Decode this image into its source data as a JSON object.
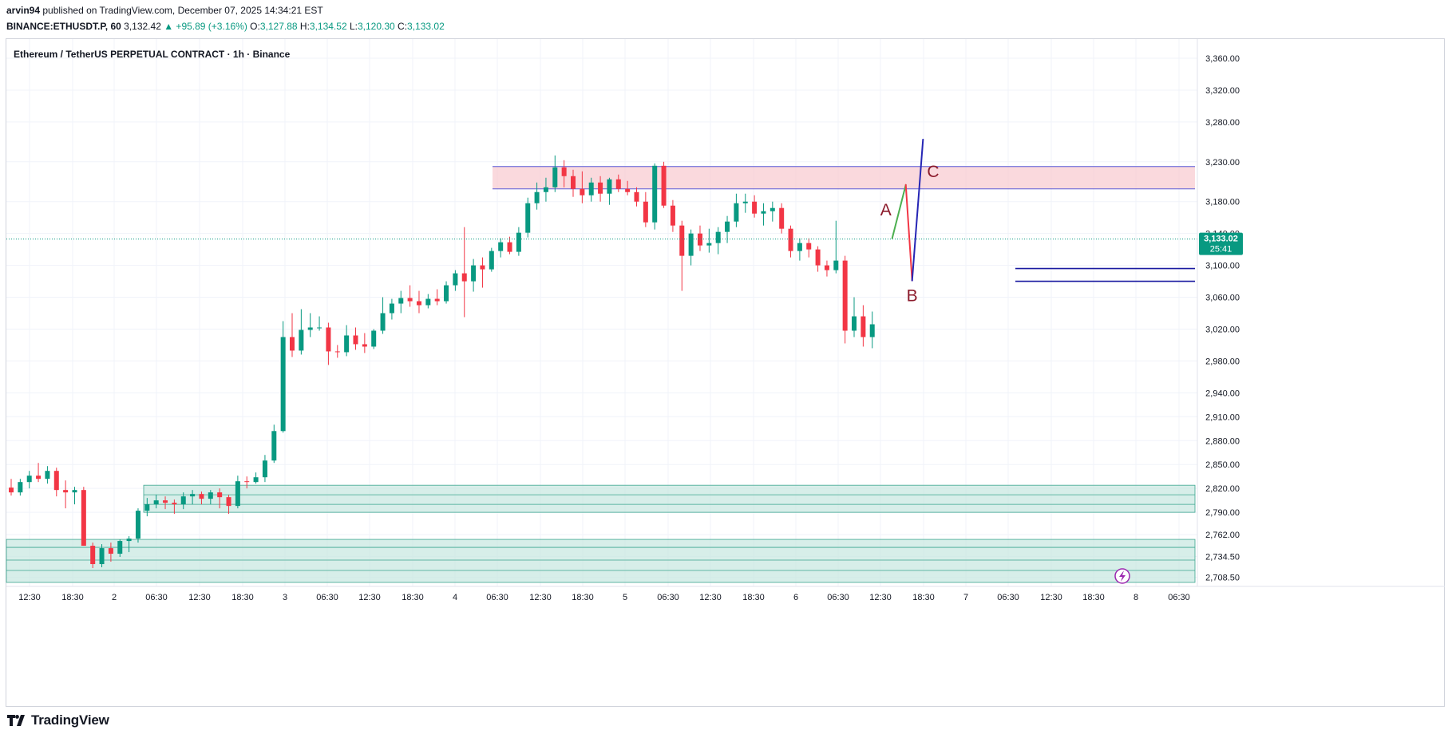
{
  "header": {
    "author": "arvin94",
    "published_text": "published on TradingView.com, December 07, 2025 14:34:21 EST",
    "symbol_interval": "BINANCE:ETHUSDT.P, 60",
    "last": "3,132.42",
    "change": "▲ +95.89 (+3.16%)",
    "o_label": "O:",
    "o_value": "3,127.88",
    "h_label": "H:",
    "h_value": "3,134.52",
    "l_label": "L:",
    "l_value": "3,120.30",
    "c_label": "C:",
    "c_value": "3,133.02"
  },
  "chart_title": "Ethereum / TetherUS PERPETUAL CONTRACT · 1h · Binance",
  "brand": {
    "name": "TradingView",
    "logo_icon": "tradingview-logo-icon"
  },
  "colors": {
    "up": "#089981",
    "down": "#f23645",
    "zone_supply": "#f7c5cb",
    "zone_demand": "#c6e7df",
    "navy": "#1a1aa0",
    "wave_label": "#8b1a2b",
    "price_tag": "#089981",
    "grid": "#f0f3fa"
  },
  "chart_data": {
    "type": "candlestick",
    "title": "Ethereum / TetherUS PERPETUAL CONTRACT · 1h · Binance",
    "ylim": [
      2700,
      3385
    ],
    "x_tick_labels": [
      "12:30",
      "18:30",
      "2",
      "06:30",
      "12:30",
      "18:30",
      "3",
      "06:30",
      "12:30",
      "18:30",
      "4",
      "06:30",
      "12:30",
      "18:30",
      "5",
      "06:30",
      "12:30",
      "18:30",
      "6",
      "06:30",
      "12:30",
      "18:30",
      "7",
      "06:30",
      "12:30",
      "18:30",
      "8",
      "06:30"
    ],
    "y_ticks": [
      3360,
      3320,
      3280,
      3230,
      3180,
      3140,
      3100,
      3060,
      3020,
      2980,
      2940,
      2910,
      2880,
      2850,
      2820,
      2790,
      2762,
      2734.5,
      2708.5
    ],
    "y_tick_labels": [
      "3,360.00",
      "3,320.00",
      "3,280.00",
      "3,230.00",
      "3,180.00",
      "3,140.00",
      "3,100.00",
      "3,060.00",
      "3,020.00",
      "2,980.00",
      "2,940.00",
      "2,910.00",
      "2,880.00",
      "2,850.00",
      "2,820.00",
      "2,790.00",
      "2,762.00",
      "2,734.50",
      "2,708.50"
    ],
    "current_price": {
      "value": 3133.02,
      "label": "3,133.02",
      "countdown": "25:41"
    },
    "zones": [
      {
        "name": "supply-zone",
        "type": "supply",
        "price_low": 3196,
        "price_high": 3224
      },
      {
        "name": "demand-zone-upper",
        "type": "demand",
        "price_low": 2790,
        "price_high": 2824,
        "inner_lines": [
          2812,
          2800
        ]
      },
      {
        "name": "demand-zone-lower",
        "type": "demand",
        "price_low": 2702,
        "price_high": 2756,
        "inner_lines": [
          2746,
          2730,
          2717
        ]
      }
    ],
    "levels": [
      3096,
      3080
    ],
    "projection": {
      "labels": [
        "A",
        "B",
        "C"
      ],
      "path": [
        {
          "bar": 97.2,
          "price": 3134
        },
        {
          "bar": 98.7,
          "price": 3201
        },
        {
          "bar": 99.4,
          "price": 3081
        },
        {
          "bar": 100.6,
          "price": 3258
        }
      ]
    },
    "candles": [
      [
        2821,
        2832,
        2811,
        2815
      ],
      [
        2815,
        2832,
        2811,
        2828
      ],
      [
        2828,
        2842,
        2820,
        2836
      ],
      [
        2836,
        2852,
        2828,
        2832
      ],
      [
        2832,
        2848,
        2826,
        2842
      ],
      [
        2842,
        2846,
        2810,
        2818
      ],
      [
        2818,
        2830,
        2795,
        2815
      ],
      [
        2815,
        2822,
        2800,
        2818
      ],
      [
        2818,
        2822,
        2748,
        2748
      ],
      [
        2748,
        2752,
        2720,
        2725
      ],
      [
        2725,
        2750,
        2721,
        2745
      ],
      [
        2745,
        2752,
        2728,
        2738
      ],
      [
        2738,
        2756,
        2734,
        2754
      ],
      [
        2754,
        2760,
        2740,
        2757
      ],
      [
        2757,
        2795,
        2752,
        2792
      ],
      [
        2792,
        2808,
        2785,
        2800
      ],
      [
        2800,
        2812,
        2795,
        2805
      ],
      [
        2805,
        2810,
        2794,
        2802
      ],
      [
        2802,
        2806,
        2788,
        2800
      ],
      [
        2800,
        2815,
        2794,
        2810
      ],
      [
        2810,
        2818,
        2800,
        2813
      ],
      [
        2813,
        2816,
        2800,
        2807
      ],
      [
        2807,
        2818,
        2800,
        2815
      ],
      [
        2815,
        2820,
        2795,
        2809
      ],
      [
        2809,
        2812,
        2788,
        2798
      ],
      [
        2798,
        2836,
        2795,
        2829
      ],
      [
        2829,
        2835,
        2820,
        2828
      ],
      [
        2828,
        2840,
        2826,
        2834
      ],
      [
        2834,
        2862,
        2828,
        2855
      ],
      [
        2855,
        2900,
        2852,
        2892
      ],
      [
        2892,
        3030,
        2890,
        3010
      ],
      [
        3010,
        3040,
        2985,
        2993
      ],
      [
        2993,
        3045,
        2988,
        3019
      ],
      [
        3019,
        3040,
        3010,
        3022
      ],
      [
        3022,
        3036,
        3018,
        3022
      ],
      [
        3022,
        3028,
        2975,
        2992
      ],
      [
        2992,
        3000,
        2984,
        2991
      ],
      [
        2991,
        3025,
        2986,
        3012
      ],
      [
        3012,
        3022,
        2994,
        3001
      ],
      [
        3001,
        3015,
        2990,
        2998
      ],
      [
        2998,
        3020,
        2995,
        3018
      ],
      [
        3018,
        3060,
        3014,
        3040
      ],
      [
        3040,
        3058,
        3032,
        3052
      ],
      [
        3052,
        3068,
        3040,
        3059
      ],
      [
        3059,
        3075,
        3048,
        3055
      ],
      [
        3055,
        3068,
        3040,
        3050
      ],
      [
        3050,
        3064,
        3046,
        3058
      ],
      [
        3058,
        3070,
        3050,
        3055
      ],
      [
        3055,
        3080,
        3052,
        3075
      ],
      [
        3075,
        3094,
        3068,
        3090
      ],
      [
        3090,
        3148,
        3035,
        3080
      ],
      [
        3080,
        3108,
        3067,
        3100
      ],
      [
        3100,
        3110,
        3072,
        3095
      ],
      [
        3095,
        3122,
        3092,
        3118
      ],
      [
        3118,
        3134,
        3110,
        3129
      ],
      [
        3129,
        3136,
        3114,
        3117
      ],
      [
        3117,
        3148,
        3112,
        3141
      ],
      [
        3141,
        3185,
        3135,
        3178
      ],
      [
        3178,
        3204,
        3170,
        3192
      ],
      [
        3192,
        3210,
        3180,
        3198
      ],
      [
        3198,
        3238,
        3192,
        3223
      ],
      [
        3223,
        3232,
        3198,
        3212
      ],
      [
        3212,
        3220,
        3186,
        3196
      ],
      [
        3196,
        3218,
        3178,
        3188
      ],
      [
        3188,
        3210,
        3180,
        3204
      ],
      [
        3204,
        3212,
        3180,
        3190
      ],
      [
        3190,
        3210,
        3176,
        3208
      ],
      [
        3208,
        3214,
        3192,
        3196
      ],
      [
        3196,
        3206,
        3188,
        3192
      ],
      [
        3192,
        3198,
        3174,
        3180
      ],
      [
        3180,
        3192,
        3148,
        3154
      ],
      [
        3154,
        3228,
        3145,
        3225
      ],
      [
        3225,
        3230,
        3172,
        3175
      ],
      [
        3175,
        3182,
        3142,
        3150
      ],
      [
        3150,
        3156,
        3068,
        3112
      ],
      [
        3112,
        3145,
        3100,
        3140
      ],
      [
        3140,
        3150,
        3118,
        3125
      ],
      [
        3125,
        3146,
        3116,
        3128
      ],
      [
        3128,
        3148,
        3114,
        3142
      ],
      [
        3142,
        3162,
        3128,
        3155
      ],
      [
        3155,
        3190,
        3148,
        3178
      ],
      [
        3178,
        3190,
        3166,
        3180
      ],
      [
        3180,
        3188,
        3160,
        3165
      ],
      [
        3165,
        3178,
        3150,
        3168
      ],
      [
        3168,
        3180,
        3155,
        3172
      ],
      [
        3172,
        3178,
        3140,
        3146
      ],
      [
        3146,
        3150,
        3110,
        3118
      ],
      [
        3118,
        3134,
        3106,
        3128
      ],
      [
        3128,
        3134,
        3110,
        3120
      ],
      [
        3120,
        3124,
        3092,
        3100
      ],
      [
        3100,
        3106,
        3086,
        3094
      ],
      [
        3094,
        3156,
        3090,
        3106
      ],
      [
        3106,
        3112,
        3002,
        3018
      ],
      [
        3018,
        3060,
        3010,
        3036
      ],
      [
        3036,
        3050,
        2998,
        3010
      ],
      [
        3010,
        3042,
        2996,
        3026
      ]
    ]
  }
}
